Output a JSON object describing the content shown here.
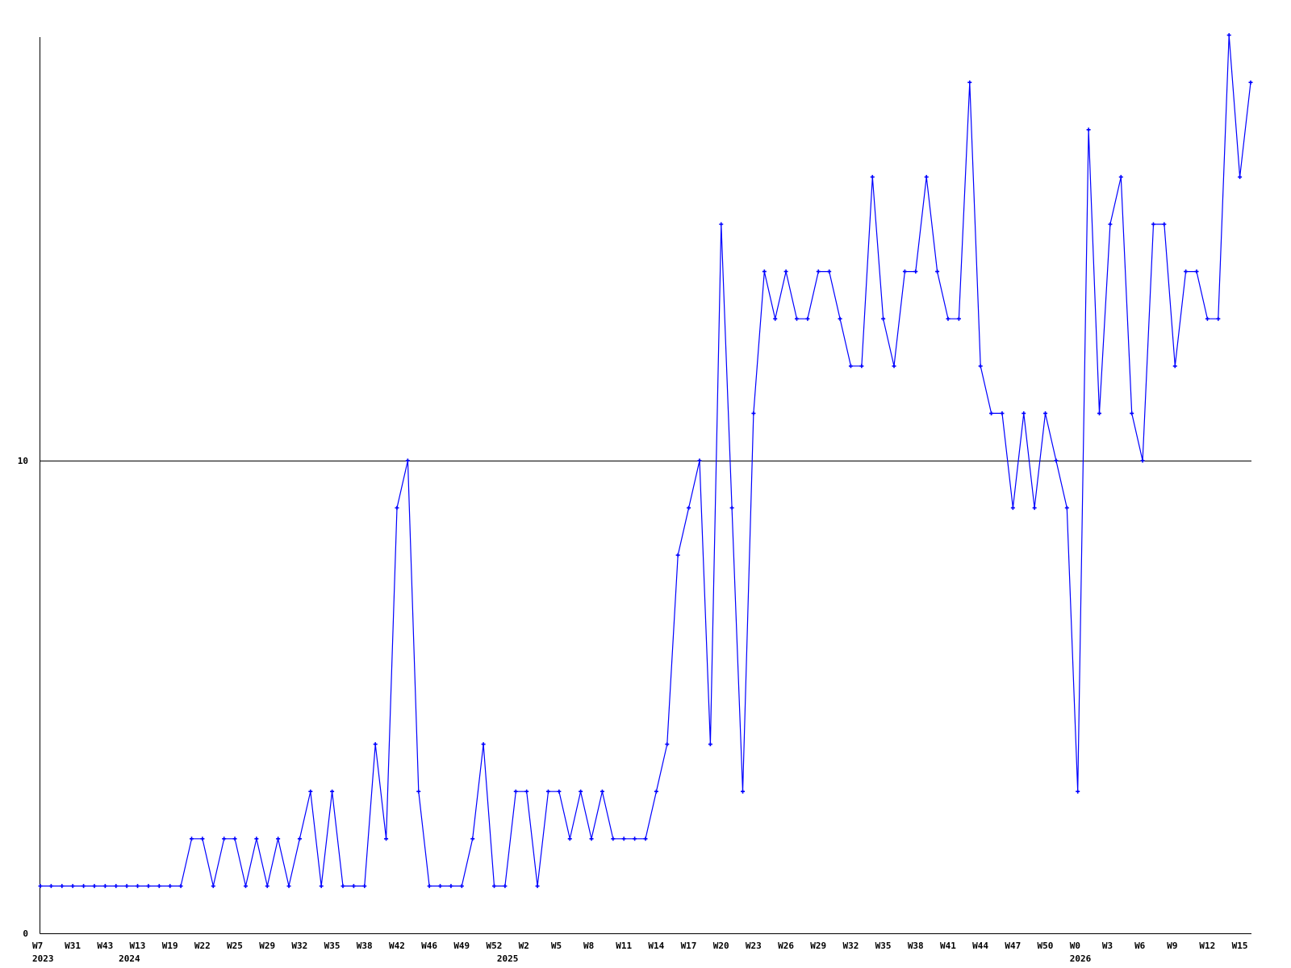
{
  "chart_data": {
    "type": "line",
    "title": "",
    "xlabel": "",
    "ylabel": "",
    "ylim": [
      0,
      19
    ],
    "y_ticks": [
      0,
      10
    ],
    "y_tick_labels": [
      "0",
      "10"
    ],
    "grid": "horizontal line at 10 only",
    "legend": "none",
    "colors": {
      "series": "#0000ff",
      "axis": "#000000",
      "grid": "#000000"
    },
    "x_tick_labels": [
      {
        "index": 0,
        "label": "W7"
      },
      {
        "index": 3,
        "label": "W31"
      },
      {
        "index": 6,
        "label": "W43"
      },
      {
        "index": 9,
        "label": "W13"
      },
      {
        "index": 12,
        "label": "W19"
      },
      {
        "index": 15,
        "label": "W22"
      },
      {
        "index": 18,
        "label": "W25"
      },
      {
        "index": 21,
        "label": "W29"
      },
      {
        "index": 24,
        "label": "W32"
      },
      {
        "index": 27,
        "label": "W35"
      },
      {
        "index": 30,
        "label": "W38"
      },
      {
        "index": 33,
        "label": "W42"
      },
      {
        "index": 36,
        "label": "W46"
      },
      {
        "index": 39,
        "label": "W49"
      },
      {
        "index": 42,
        "label": "W52"
      },
      {
        "index": 45,
        "label": "W2"
      },
      {
        "index": 48,
        "label": "W5"
      },
      {
        "index": 51,
        "label": "W8"
      },
      {
        "index": 54,
        "label": "W11"
      },
      {
        "index": 57,
        "label": "W14"
      },
      {
        "index": 60,
        "label": "W17"
      },
      {
        "index": 63,
        "label": "W20"
      },
      {
        "index": 66,
        "label": "W23"
      },
      {
        "index": 69,
        "label": "W26"
      },
      {
        "index": 72,
        "label": "W29"
      },
      {
        "index": 75,
        "label": "W32"
      },
      {
        "index": 78,
        "label": "W35"
      },
      {
        "index": 81,
        "label": "W38"
      },
      {
        "index": 84,
        "label": "W41"
      },
      {
        "index": 87,
        "label": "W44"
      },
      {
        "index": 90,
        "label": "W47"
      },
      {
        "index": 93,
        "label": "W50"
      },
      {
        "index": 96,
        "label": "W0"
      },
      {
        "index": 99,
        "label": "W3"
      },
      {
        "index": 102,
        "label": "W6"
      },
      {
        "index": 105,
        "label": "W9"
      },
      {
        "index": 108,
        "label": "W12"
      },
      {
        "index": 111,
        "label": "W15"
      }
    ],
    "year_labels": [
      {
        "index": 0,
        "label": "2023"
      },
      {
        "index": 8,
        "label": "2024"
      },
      {
        "index": 43,
        "label": "2025"
      },
      {
        "index": 96,
        "label": "2026"
      }
    ],
    "series": [
      {
        "values": [
          1,
          1,
          1,
          1,
          1,
          1,
          1,
          1,
          1,
          1,
          1,
          1,
          1,
          1,
          2,
          2,
          1,
          2,
          2,
          1,
          2,
          1,
          2,
          1,
          2,
          3,
          1,
          3,
          1,
          1,
          1,
          4,
          2,
          9,
          10,
          3,
          1,
          1,
          1,
          1,
          2,
          4,
          1,
          1,
          3,
          3,
          1,
          3,
          3,
          2,
          3,
          2,
          3,
          2,
          2,
          2,
          2,
          3,
          4,
          8,
          9,
          10,
          4,
          15,
          9,
          3,
          11,
          14,
          13,
          14,
          13,
          13,
          14,
          14,
          13,
          12,
          12,
          16,
          13,
          12,
          14,
          14,
          16,
          14,
          13,
          13,
          18,
          12,
          11,
          11,
          9,
          11,
          9,
          11,
          10,
          9,
          3,
          17,
          11,
          15,
          16,
          11,
          10,
          15,
          15,
          12,
          14,
          14,
          13,
          13,
          19,
          16,
          18
        ]
      }
    ]
  }
}
